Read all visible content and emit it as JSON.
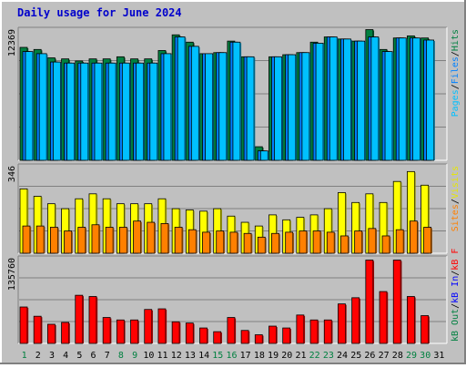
{
  "chart_data": {
    "type": "bar",
    "title": "Daily usage for June 2024",
    "categories": [
      "1",
      "2",
      "3",
      "4",
      "5",
      "6",
      "7",
      "8",
      "9",
      "10",
      "11",
      "12",
      "13",
      "14",
      "15",
      "16",
      "17",
      "18",
      "19",
      "20",
      "21",
      "22",
      "23",
      "24",
      "25",
      "26",
      "27",
      "28",
      "29",
      "30",
      "31"
    ],
    "weekend_days": [
      "1",
      "8",
      "9",
      "15",
      "16",
      "22",
      "23",
      "29",
      "30"
    ],
    "legend_sep": "/",
    "panels": [
      {
        "max_label": "12369",
        "ylim": [
          0,
          12369
        ],
        "legend_order": "bottom-to-top",
        "series": [
          {
            "name": "Hits",
            "color": "#008040",
            "values": [
              10800,
              10600,
              9800,
              9700,
              9500,
              9700,
              9700,
              9900,
              9700,
              9700,
              10500,
              12000,
              11300,
              10200,
              10300,
              11400,
              9900,
              1300,
              9900,
              10100,
              10300,
              11300,
              11800,
              11600,
              11400,
              12500,
              10600,
              11700,
              11900,
              11700,
              0
            ]
          },
          {
            "name": "Files",
            "color": "#0080ff",
            "values": [
              10400,
              10200,
              9400,
              9300,
              9300,
              9300,
              9300,
              9300,
              9300,
              9300,
              10200,
              11800,
              10900,
              10200,
              10300,
              11300,
              9900,
              900,
              9900,
              10100,
              10300,
              11200,
              11800,
              11600,
              11400,
              11800,
              10400,
              11700,
              11700,
              11500,
              0
            ]
          },
          {
            "name": "Pages",
            "color": "#00c0ff",
            "values": [
              10400,
              10200,
              9400,
              9300,
              9300,
              9300,
              9300,
              9300,
              9300,
              9300,
              10200,
              11800,
              10900,
              10200,
              10300,
              11300,
              9900,
              900,
              9900,
              10100,
              10300,
              11200,
              11800,
              11600,
              11400,
              11800,
              10400,
              11700,
              11700,
              11500,
              0
            ]
          }
        ]
      },
      {
        "max_label": "346",
        "ylim": [
          0,
          346
        ],
        "legend_order": "bottom-to-top",
        "series": [
          {
            "name": "Visits",
            "color": "#ffff00",
            "values": [
              260,
              230,
              200,
              180,
              220,
              240,
              220,
              200,
              200,
              200,
              220,
              180,
              175,
              170,
              180,
              150,
              125,
              110,
              155,
              135,
              145,
              155,
              180,
              245,
              205,
              240,
              205,
              290,
              330,
              275,
              0
            ]
          },
          {
            "name": "Sites",
            "color": "#ff8000",
            "values": [
              110,
              110,
              105,
              90,
              105,
              115,
              105,
              105,
              130,
              125,
              120,
              105,
              95,
              85,
              90,
              85,
              80,
              65,
              80,
              85,
              90,
              90,
              85,
              70,
              90,
              100,
              70,
              95,
              130,
              105,
              0
            ]
          }
        ]
      },
      {
        "max_label": "135760",
        "ylim": [
          0,
          135760
        ],
        "legend_order": "bottom-to-top",
        "series": [
          {
            "name": "kB F",
            "color": "#ff0000",
            "values": [
              59000,
              44000,
              31000,
              34000,
              78000,
              76000,
              42000,
              38000,
              38000,
              55000,
              56000,
              35000,
              33000,
              25000,
              19000,
              42000,
              21000,
              14000,
              28000,
              25000,
              46000,
              38000,
              38000,
              64000,
              74000,
              135000,
              84000,
              135000,
              76000,
              45000,
              0
            ]
          },
          {
            "name": "kB In",
            "color": "#0000ff",
            "values": [
              0,
              0,
              0,
              0,
              0,
              0,
              0,
              0,
              0,
              0,
              0,
              0,
              0,
              0,
              0,
              0,
              0,
              0,
              0,
              0,
              0,
              0,
              0,
              0,
              0,
              0,
              0,
              0,
              0,
              0,
              0
            ]
          },
          {
            "name": "kB Out",
            "color": "#008040",
            "values": [
              0,
              0,
              0,
              0,
              0,
              0,
              0,
              0,
              0,
              0,
              0,
              0,
              0,
              0,
              0,
              0,
              0,
              0,
              0,
              0,
              0,
              0,
              0,
              0,
              0,
              0,
              0,
              0,
              0,
              0,
              0
            ]
          }
        ]
      }
    ]
  }
}
